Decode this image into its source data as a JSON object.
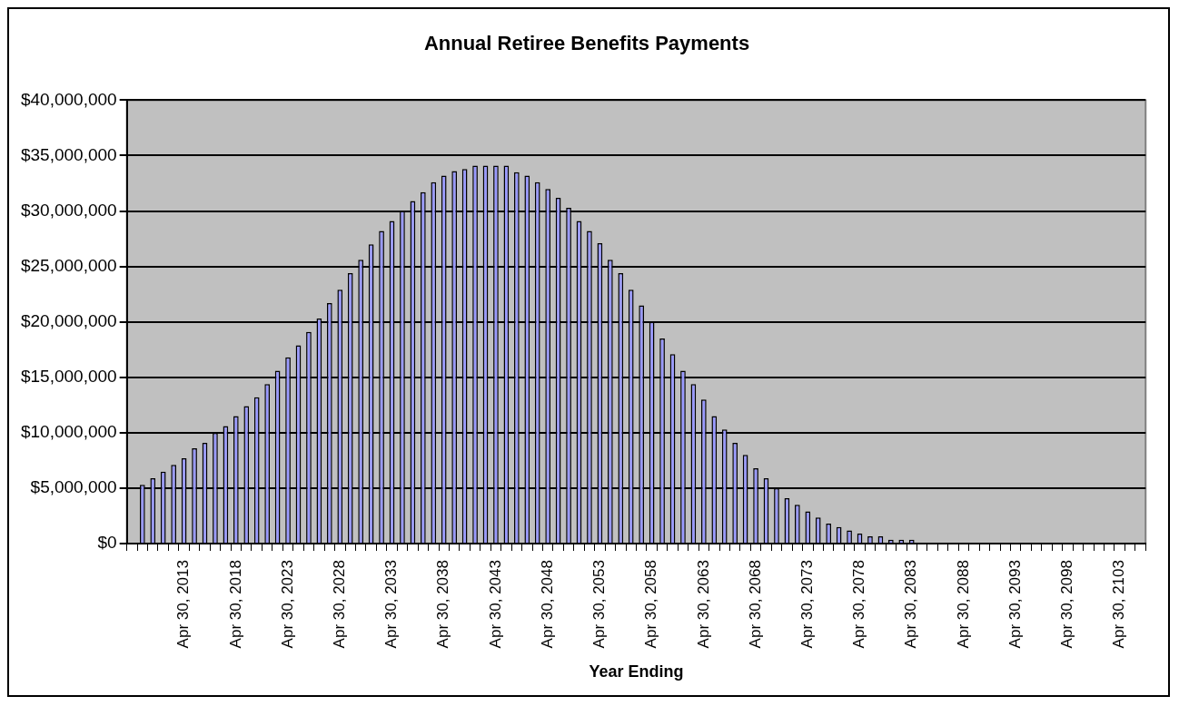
{
  "chart_data": {
    "type": "bar",
    "title": "Annual Retiree Benefits Payments",
    "xlabel": "Year Ending",
    "categories": [
      null,
      null,
      null,
      null,
      null,
      "Apr 30, 2013",
      null,
      null,
      null,
      null,
      "Apr 30, 2018",
      null,
      null,
      null,
      null,
      "Apr 30, 2023",
      null,
      null,
      null,
      null,
      "Apr 30, 2028",
      null,
      null,
      null,
      null,
      "Apr 30, 2033",
      null,
      null,
      null,
      null,
      "Apr 30, 2038",
      null,
      null,
      null,
      null,
      "Apr 30, 2043",
      null,
      null,
      null,
      null,
      "Apr 30, 2048",
      null,
      null,
      null,
      null,
      "Apr 30, 2053",
      null,
      null,
      null,
      null,
      "Apr 30, 2058",
      null,
      null,
      null,
      null,
      "Apr 30, 2063",
      null,
      null,
      null,
      null,
      "Apr 30, 2068",
      null,
      null,
      null,
      null,
      "Apr 30, 2073",
      null,
      null,
      null,
      null,
      "Apr 30, 2078",
      null,
      null,
      null,
      null,
      "Apr 30, 2083",
      null,
      null,
      null,
      null,
      "Apr 30, 2088",
      null,
      null,
      null,
      null,
      "Apr 30, 2093",
      null,
      null,
      null,
      null,
      "Apr 30, 2098",
      null,
      null,
      null,
      null,
      "Apr 30, 2103",
      null,
      null
    ],
    "values": [
      null,
      5300000,
      5900000,
      6500000,
      7100000,
      7700000,
      8600000,
      9100000,
      10000000,
      10600000,
      11500000,
      12400000,
      13200000,
      14400000,
      15600000,
      16800000,
      17900000,
      19100000,
      20300000,
      21700000,
      22900000,
      24400000,
      25600000,
      27000000,
      28200000,
      29100000,
      30000000,
      30900000,
      31700000,
      32600000,
      33200000,
      33600000,
      33800000,
      34100000,
      34100000,
      34100000,
      34100000,
      33500000,
      33200000,
      32600000,
      32000000,
      31200000,
      30300000,
      29100000,
      28200000,
      27100000,
      25600000,
      24400000,
      22900000,
      21500000,
      20000000,
      18500000,
      17100000,
      15600000,
      14400000,
      13000000,
      11500000,
      10300000,
      9100000,
      8000000,
      6800000,
      5900000,
      5000000,
      4100000,
      3500000,
      2900000,
      2350000,
      1800000,
      1500000,
      1200000,
      900000,
      650000,
      650000,
      350000,
      350000,
      350000,
      null,
      null,
      null,
      null,
      null,
      null,
      null,
      null,
      null,
      null,
      null,
      null,
      null,
      null,
      null,
      null,
      null,
      null,
      null,
      null,
      null,
      null
    ],
    "color": "#9999ff",
    "ylim": [
      0,
      40000000
    ],
    "yticks": [
      {
        "value": 0,
        "label": "$0"
      },
      {
        "value": 5000000,
        "label": "$5,000,000"
      },
      {
        "value": 10000000,
        "label": "$10,000,000"
      },
      {
        "value": 15000000,
        "label": "$15,000,000"
      },
      {
        "value": 20000000,
        "label": "$20,000,000"
      },
      {
        "value": 25000000,
        "label": "$25,000,000"
      },
      {
        "value": 30000000,
        "label": "$30,000,000"
      },
      {
        "value": 35000000,
        "label": "$35,000,000"
      },
      {
        "value": 40000000,
        "label": "$40,000,000"
      }
    ],
    "grid": "y",
    "legend": false
  }
}
